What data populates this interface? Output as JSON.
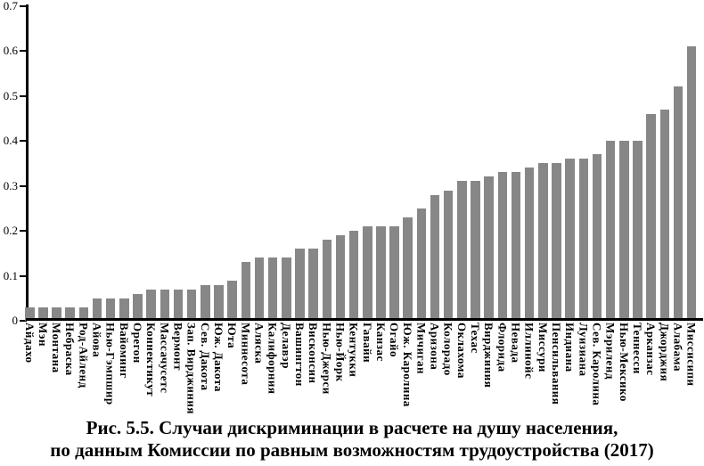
{
  "chart_data": {
    "type": "bar",
    "title": "",
    "xlabel": "",
    "ylabel": "",
    "ylim": [
      0,
      0.7
    ],
    "ytick_labels": [
      "0",
      "0.1",
      "0.2",
      "0.3",
      "0.4",
      "0.5",
      "0.6",
      "0.7"
    ],
    "ytick_values": [
      0,
      0.1,
      0.2,
      0.3,
      0.4,
      0.5,
      0.6,
      0.7
    ],
    "grid": false,
    "legend": false,
    "bar_color": "#878787",
    "axis_color": "#000000",
    "categories": [
      "Айдахо",
      "Мэн",
      "Монтана",
      "Небраска",
      "Род-Айленд",
      "Айова",
      "Нью-Гэмпшир",
      "Вайоминг",
      "Орегон",
      "Коннектикут",
      "Массачусетс",
      "Вермонт",
      "Зап. Вирджиния",
      "Сев. Дакота",
      "Юж. Дакота",
      "Юта",
      "Миннесота",
      "Аляска",
      "Калифорния",
      "Делавэр",
      "Вашингтон",
      "Висконсин",
      "Нью-Джерси",
      "Нью-Йорк",
      "Кентукки",
      "Гавайи",
      "Канзас",
      "Огайо",
      "Юж. Каролина",
      "Мичиган",
      "Аризона",
      "Колорадо",
      "Оклахома",
      "Техас",
      "Вирджиния",
      "Флорида",
      "Невада",
      "Иллинойс",
      "Миссури",
      "Пенсильвания",
      "Индиана",
      "Луизиана",
      "Сев. Каролина",
      "Мэриленд",
      "Нью-Мексико",
      "Теннесси",
      "Арканзас",
      "Джорджия",
      "Алабама",
      "Миссисипи"
    ],
    "values": [
      0.03,
      0.03,
      0.03,
      0.03,
      0.03,
      0.05,
      0.05,
      0.05,
      0.06,
      0.07,
      0.07,
      0.07,
      0.07,
      0.08,
      0.08,
      0.09,
      0.13,
      0.14,
      0.14,
      0.14,
      0.16,
      0.16,
      0.18,
      0.19,
      0.2,
      0.21,
      0.21,
      0.21,
      0.23,
      0.25,
      0.28,
      0.29,
      0.31,
      0.31,
      0.32,
      0.33,
      0.33,
      0.34,
      0.35,
      0.35,
      0.36,
      0.36,
      0.37,
      0.4,
      0.4,
      0.4,
      0.46,
      0.47,
      0.52,
      0.61
    ]
  },
  "caption": {
    "line1": "Рис. 5.5. Случаи дискриминации в расчете на душу населения,",
    "line2": "по данным Комиссии по равным возможностям трудоустройства (2017)"
  }
}
